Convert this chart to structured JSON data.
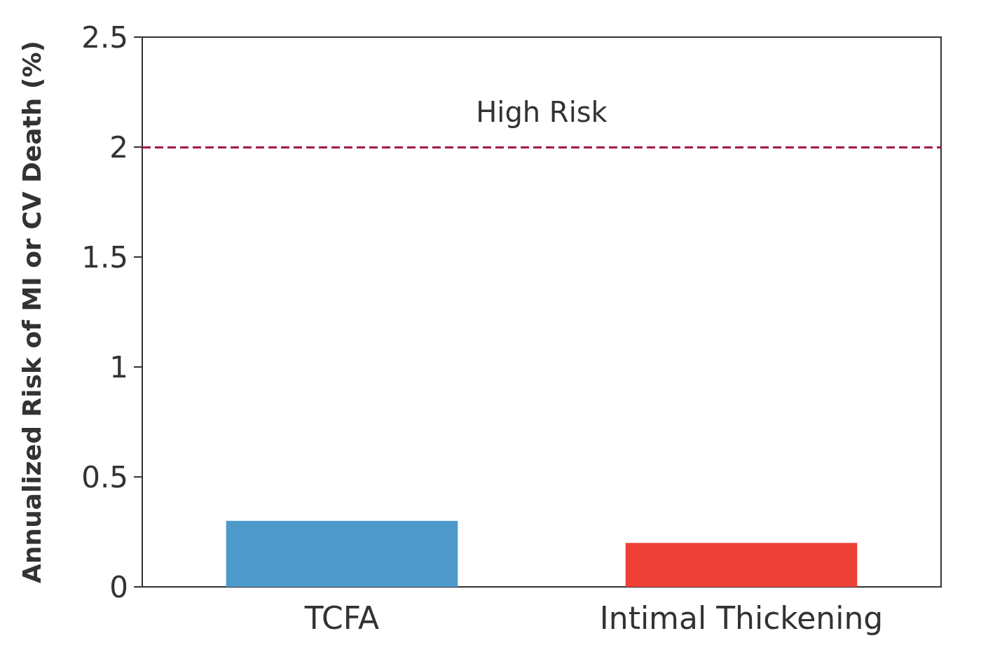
{
  "chart_data": {
    "type": "bar",
    "ylabel": "Annualized Risk of MI or CV Death (%)",
    "categories": [
      "TCFA",
      "Intimal Thickening"
    ],
    "values": [
      0.3,
      0.2
    ],
    "colors": [
      "#4d9acb",
      "#ee4036"
    ],
    "ylim": [
      0,
      2.5
    ],
    "yticks": [
      0,
      0.5,
      1,
      1.5,
      2,
      2.5
    ],
    "grid": false,
    "ref_lines": [
      {
        "axis": "y",
        "value": 2,
        "label": "High Risk",
        "color": "#a3174a",
        "line_style": "dashed"
      }
    ]
  }
}
